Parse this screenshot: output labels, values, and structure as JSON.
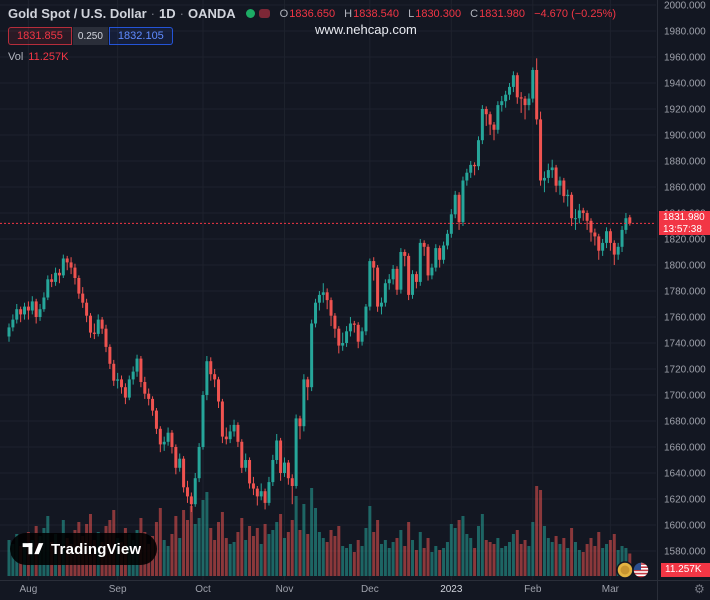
{
  "header": {
    "symbol_title": "Gold Spot / U.S. Dollar",
    "separator": "·",
    "interval": "1D",
    "exchange": "OANDA",
    "ohlc": {
      "o_label": "O",
      "o": "1836.650",
      "h_label": "H",
      "h": "1838.540",
      "l_label": "L",
      "l": "1830.300",
      "c_label": "C",
      "c": "1831.980",
      "change": "−4.670 (−0.25%)"
    },
    "trade": {
      "sell": "1831.855",
      "spread": "0.250",
      "buy": "1832.105"
    },
    "volume_label": "Vol",
    "volume_value": "11.257K"
  },
  "watermark": {
    "text": "www.nehcap.com"
  },
  "price_axis": {
    "ticks": [
      "2000.000",
      "1980.000",
      "1960.000",
      "1940.000",
      "1920.000",
      "1900.000",
      "1880.000",
      "1860.000",
      "1840.000",
      "1820.000",
      "1800.000",
      "1780.000",
      "1760.000",
      "1740.000",
      "1720.000",
      "1700.000",
      "1680.000",
      "1660.000",
      "1640.000",
      "1620.000",
      "1600.000",
      "1580.000"
    ],
    "last_price_label": "1831.980",
    "countdown": "13:57:38",
    "volume_axis_label": "11.257K"
  },
  "time_axis": {
    "ticks": [
      {
        "label": "Aug",
        "index": 5,
        "highlight": false
      },
      {
        "label": "Sep",
        "index": 28,
        "highlight": false
      },
      {
        "label": "Oct",
        "index": 50,
        "highlight": false
      },
      {
        "label": "Nov",
        "index": 71,
        "highlight": false
      },
      {
        "label": "Dec",
        "index": 93,
        "highlight": false
      },
      {
        "label": "2023",
        "index": 114,
        "highlight": true
      },
      {
        "label": "Feb",
        "index": 135,
        "highlight": false
      },
      {
        "label": "Mar",
        "index": 155,
        "highlight": false
      }
    ]
  },
  "branding": {
    "logo_text": "TradingView"
  },
  "colors": {
    "background": "#131722",
    "up": "#26a69a",
    "down": "#ef5350",
    "accent_red": "#f23645",
    "buy_blue": "#2962ff",
    "grid": "#1e222d",
    "axis_text": "#9ea1ab",
    "title_text": "#d1d4dc"
  },
  "chart_data": {
    "type": "candlestick",
    "symbol": "Gold Spot / U.S. Dollar (XAU/USD)",
    "exchange": "OANDA",
    "interval": "1D",
    "x_span": "Aug 2022 – Mar 2023",
    "price_range": {
      "min": 1580,
      "max": 2000,
      "step": 20
    },
    "last_price": 1831.98,
    "volume_unit": "K",
    "candles": [
      [
        1745,
        1755,
        1741,
        1752,
        18
      ],
      [
        1752,
        1762,
        1749,
        1758,
        16
      ],
      [
        1758,
        1770,
        1755,
        1766,
        21
      ],
      [
        1766,
        1768,
        1756,
        1762,
        15
      ],
      [
        1762,
        1771,
        1758,
        1768,
        17
      ],
      [
        1768,
        1772,
        1758,
        1765,
        22
      ],
      [
        1765,
        1776,
        1762,
        1772,
        18
      ],
      [
        1772,
        1774,
        1755,
        1760,
        25
      ],
      [
        1760,
        1770,
        1757,
        1766,
        20
      ],
      [
        1766,
        1779,
        1764,
        1775,
        24
      ],
      [
        1775,
        1792,
        1773,
        1789,
        30
      ],
      [
        1789,
        1793,
        1783,
        1787,
        17
      ],
      [
        1787,
        1798,
        1784,
        1794,
        21
      ],
      [
        1794,
        1797,
        1786,
        1792,
        15
      ],
      [
        1792,
        1808,
        1790,
        1805,
        28
      ],
      [
        1805,
        1807,
        1796,
        1802,
        19
      ],
      [
        1802,
        1806,
        1793,
        1798,
        16
      ],
      [
        1798,
        1801,
        1785,
        1790,
        23
      ],
      [
        1790,
        1792,
        1774,
        1778,
        27
      ],
      [
        1778,
        1783,
        1767,
        1771,
        20
      ],
      [
        1771,
        1774,
        1756,
        1761,
        26
      ],
      [
        1761,
        1763,
        1744,
        1748,
        31
      ],
      [
        1748,
        1755,
        1743,
        1747,
        18
      ],
      [
        1747,
        1762,
        1745,
        1758,
        22
      ],
      [
        1758,
        1760,
        1747,
        1751,
        17
      ],
      [
        1751,
        1754,
        1733,
        1737,
        25
      ],
      [
        1737,
        1739,
        1720,
        1724,
        28
      ],
      [
        1724,
        1727,
        1707,
        1711,
        33
      ],
      [
        1711,
        1717,
        1705,
        1712,
        19
      ],
      [
        1712,
        1715,
        1701,
        1706,
        17
      ],
      [
        1706,
        1709,
        1693,
        1698,
        24
      ],
      [
        1698,
        1715,
        1696,
        1712,
        21
      ],
      [
        1712,
        1722,
        1708,
        1718,
        18
      ],
      [
        1718,
        1731,
        1714,
        1728,
        23
      ],
      [
        1728,
        1730,
        1706,
        1710,
        29
      ],
      [
        1710,
        1714,
        1697,
        1701,
        22
      ],
      [
        1701,
        1705,
        1692,
        1697,
        16
      ],
      [
        1697,
        1699,
        1684,
        1688,
        20
      ],
      [
        1688,
        1690,
        1670,
        1674,
        27
      ],
      [
        1674,
        1676,
        1656,
        1662,
        34
      ],
      [
        1662,
        1668,
        1657,
        1664,
        18
      ],
      [
        1664,
        1675,
        1661,
        1671,
        15
      ],
      [
        1671,
        1673,
        1655,
        1660,
        21
      ],
      [
        1660,
        1662,
        1639,
        1644,
        30
      ],
      [
        1644,
        1655,
        1641,
        1651,
        19
      ],
      [
        1651,
        1653,
        1625,
        1629,
        33
      ],
      [
        1629,
        1634,
        1617,
        1622,
        28
      ],
      [
        1622,
        1625,
        1610,
        1616,
        35
      ],
      [
        1616,
        1640,
        1614,
        1636,
        26
      ],
      [
        1636,
        1663,
        1633,
        1660,
        29
      ],
      [
        1660,
        1703,
        1658,
        1700,
        38
      ],
      [
        1700,
        1730,
        1696,
        1726,
        42
      ],
      [
        1726,
        1729,
        1711,
        1716,
        24
      ],
      [
        1716,
        1720,
        1706,
        1712,
        18
      ],
      [
        1712,
        1714,
        1690,
        1695,
        27
      ],
      [
        1695,
        1697,
        1663,
        1668,
        32
      ],
      [
        1668,
        1675,
        1662,
        1666,
        19
      ],
      [
        1666,
        1677,
        1663,
        1672,
        16
      ],
      [
        1672,
        1681,
        1668,
        1677,
        17
      ],
      [
        1677,
        1679,
        1660,
        1664,
        22
      ],
      [
        1664,
        1666,
        1640,
        1644,
        29
      ],
      [
        1644,
        1655,
        1641,
        1650,
        18
      ],
      [
        1650,
        1652,
        1628,
        1632,
        25
      ],
      [
        1632,
        1637,
        1623,
        1628,
        20
      ],
      [
        1628,
        1630,
        1615,
        1622,
        24
      ],
      [
        1622,
        1632,
        1619,
        1626,
        16
      ],
      [
        1626,
        1628,
        1612,
        1617,
        26
      ],
      [
        1617,
        1637,
        1615,
        1633,
        21
      ],
      [
        1633,
        1654,
        1630,
        1650,
        23
      ],
      [
        1650,
        1670,
        1647,
        1665,
        27
      ],
      [
        1665,
        1667,
        1634,
        1640,
        31
      ],
      [
        1640,
        1652,
        1637,
        1648,
        19
      ],
      [
        1648,
        1650,
        1631,
        1636,
        22
      ],
      [
        1636,
        1639,
        1616,
        1630,
        28
      ],
      [
        1630,
        1685,
        1628,
        1682,
        40
      ],
      [
        1682,
        1684,
        1666,
        1676,
        23
      ],
      [
        1676,
        1716,
        1672,
        1712,
        36
      ],
      [
        1712,
        1714,
        1696,
        1706,
        21
      ],
      [
        1706,
        1758,
        1703,
        1755,
        44
      ],
      [
        1755,
        1774,
        1752,
        1771,
        34
      ],
      [
        1771,
        1780,
        1765,
        1777,
        22
      ],
      [
        1777,
        1786,
        1771,
        1779,
        19
      ],
      [
        1779,
        1782,
        1766,
        1773,
        17
      ],
      [
        1773,
        1775,
        1753,
        1761,
        23
      ],
      [
        1761,
        1763,
        1744,
        1751,
        20
      ],
      [
        1751,
        1753,
        1732,
        1738,
        25
      ],
      [
        1738,
        1748,
        1734,
        1740,
        15
      ],
      [
        1740,
        1753,
        1737,
        1749,
        14
      ],
      [
        1749,
        1760,
        1745,
        1755,
        16
      ],
      [
        1755,
        1757,
        1748,
        1754,
        12
      ],
      [
        1754,
        1756,
        1736,
        1741,
        18
      ],
      [
        1741,
        1752,
        1738,
        1749,
        15
      ],
      [
        1749,
        1770,
        1746,
        1768,
        24
      ],
      [
        1768,
        1805,
        1765,
        1803,
        35
      ],
      [
        1803,
        1806,
        1788,
        1798,
        22
      ],
      [
        1798,
        1800,
        1764,
        1768,
        28
      ],
      [
        1768,
        1775,
        1762,
        1771,
        16
      ],
      [
        1771,
        1789,
        1768,
        1786,
        18
      ],
      [
        1786,
        1793,
        1781,
        1789,
        14
      ],
      [
        1789,
        1800,
        1785,
        1797,
        17
      ],
      [
        1797,
        1799,
        1777,
        1781,
        19
      ],
      [
        1781,
        1813,
        1778,
        1810,
        23
      ],
      [
        1810,
        1812,
        1799,
        1807,
        15
      ],
      [
        1807,
        1809,
        1773,
        1777,
        27
      ],
      [
        1777,
        1796,
        1774,
        1793,
        18
      ],
      [
        1793,
        1795,
        1782,
        1787,
        13
      ],
      [
        1787,
        1820,
        1784,
        1817,
        22
      ],
      [
        1817,
        1819,
        1807,
        1814,
        14
      ],
      [
        1814,
        1816,
        1788,
        1792,
        19
      ],
      [
        1792,
        1801,
        1789,
        1798,
        12
      ],
      [
        1798,
        1816,
        1795,
        1813,
        15
      ],
      [
        1813,
        1815,
        1798,
        1804,
        13
      ],
      [
        1804,
        1818,
        1801,
        1815,
        14
      ],
      [
        1815,
        1827,
        1812,
        1824,
        17
      ],
      [
        1824,
        1843,
        1821,
        1839,
        26
      ],
      [
        1839,
        1857,
        1836,
        1854,
        24
      ],
      [
        1854,
        1856,
        1827,
        1833,
        28
      ],
      [
        1833,
        1868,
        1830,
        1865,
        30
      ],
      [
        1865,
        1874,
        1861,
        1871,
        21
      ],
      [
        1871,
        1880,
        1867,
        1877,
        19
      ],
      [
        1877,
        1879,
        1869,
        1876,
        14
      ],
      [
        1876,
        1899,
        1873,
        1896,
        25
      ],
      [
        1896,
        1923,
        1893,
        1920,
        31
      ],
      [
        1920,
        1922,
        1907,
        1916,
        18
      ],
      [
        1916,
        1918,
        1900,
        1908,
        17
      ],
      [
        1908,
        1910,
        1896,
        1904,
        16
      ],
      [
        1904,
        1926,
        1901,
        1923,
        19
      ],
      [
        1923,
        1930,
        1918,
        1926,
        14
      ],
      [
        1926,
        1934,
        1921,
        1931,
        15
      ],
      [
        1931,
        1940,
        1927,
        1937,
        17
      ],
      [
        1937,
        1949,
        1933,
        1946,
        21
      ],
      [
        1946,
        1948,
        1924,
        1929,
        23
      ],
      [
        1929,
        1933,
        1917,
        1928,
        16
      ],
      [
        1928,
        1930,
        1912,
        1923,
        18
      ],
      [
        1923,
        1932,
        1919,
        1928,
        15
      ],
      [
        1928,
        1952,
        1925,
        1950,
        27
      ],
      [
        1950,
        1959,
        1908,
        1912,
        45
      ],
      [
        1912,
        1918,
        1861,
        1865,
        43
      ],
      [
        1865,
        1872,
        1856,
        1867,
        25
      ],
      [
        1867,
        1878,
        1863,
        1873,
        19
      ],
      [
        1873,
        1881,
        1867,
        1875,
        17
      ],
      [
        1875,
        1877,
        1856,
        1861,
        20
      ],
      [
        1861,
        1868,
        1854,
        1865,
        16
      ],
      [
        1865,
        1867,
        1848,
        1853,
        19
      ],
      [
        1853,
        1858,
        1845,
        1854,
        14
      ],
      [
        1854,
        1856,
        1830,
        1836,
        24
      ],
      [
        1836,
        1843,
        1827,
        1836,
        17
      ],
      [
        1836,
        1847,
        1832,
        1842,
        13
      ],
      [
        1842,
        1844,
        1834,
        1840,
        12
      ],
      [
        1840,
        1842,
        1827,
        1834,
        16
      ],
      [
        1834,
        1836,
        1818,
        1825,
        19
      ],
      [
        1825,
        1828,
        1815,
        1822,
        15
      ],
      [
        1822,
        1824,
        1804,
        1811,
        22
      ],
      [
        1811,
        1820,
        1807,
        1817,
        14
      ],
      [
        1817,
        1829,
        1813,
        1826,
        16
      ],
      [
        1826,
        1828,
        1811,
        1817,
        18
      ],
      [
        1817,
        1819,
        1800,
        1808,
        21
      ],
      [
        1808,
        1817,
        1804,
        1814,
        13
      ],
      [
        1814,
        1830,
        1810,
        1827,
        15
      ],
      [
        1827,
        1840,
        1824,
        1836,
        14
      ],
      [
        1836.65,
        1838.54,
        1830.3,
        1831.98,
        11.257
      ]
    ]
  }
}
